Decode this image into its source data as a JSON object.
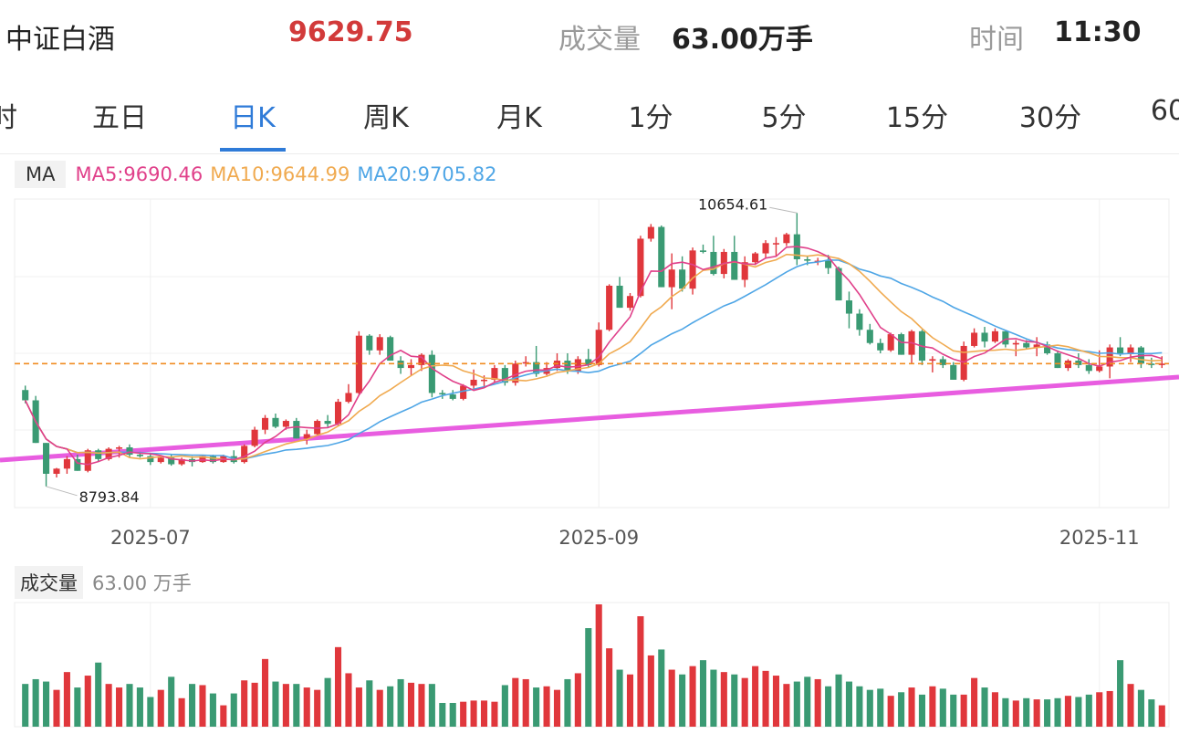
{
  "header": {
    "name": "中证白酒",
    "price": "9629.75",
    "volume_label": "成交量",
    "volume_value": "63.00万手",
    "time_label": "时间",
    "time_value": "11:30"
  },
  "tabs": [
    {
      "label": "时",
      "active": false
    },
    {
      "label": "五日",
      "active": false
    },
    {
      "label": "日K",
      "active": true
    },
    {
      "label": "周K",
      "active": false
    },
    {
      "label": "月K",
      "active": false
    },
    {
      "label": "1分",
      "active": false
    },
    {
      "label": "5分",
      "active": false
    },
    {
      "label": "15分",
      "active": false
    },
    {
      "label": "30分",
      "active": false
    },
    {
      "label": "60",
      "active": false
    }
  ],
  "ma": {
    "tag": "MA",
    "ma5": "MA5:9690.46",
    "ma10": "MA10:9644.99",
    "ma20": "MA20:9705.82",
    "colors": {
      "ma5": "#e0408a",
      "ma10": "#f0aa50",
      "ma20": "#4fa6e6"
    }
  },
  "volume_panel": {
    "tag": "成交量",
    "value": "63.00 万手"
  },
  "colors": {
    "up": "#e0373c",
    "down": "#3a9a73",
    "trendline": "#e85de0",
    "ref_line": "#f08c20"
  },
  "chart_data": {
    "type": "candlestick",
    "x_ticks": [
      "2025-07",
      "2025-09",
      "2025-11"
    ],
    "max_label": "10654.61",
    "min_label": "8793.84",
    "ylim": [
      8650,
      10750
    ],
    "reference_price": 9629.75,
    "candles": [
      [
        9450,
        9480,
        9360,
        9380
      ],
      [
        9380,
        9410,
        9090,
        9090
      ],
      [
        9090,
        9090,
        8794,
        8880
      ],
      [
        8880,
        8920,
        8855,
        8915
      ],
      [
        8915,
        9000,
        8880,
        8980
      ],
      [
        8980,
        9010,
        8900,
        8900
      ],
      [
        8900,
        9050,
        8890,
        9040
      ],
      [
        9040,
        9050,
        8960,
        8980
      ],
      [
        8980,
        9060,
        8970,
        9050
      ],
      [
        9050,
        9070,
        8990,
        9060
      ],
      [
        9060,
        9080,
        8990,
        9010
      ],
      [
        9010,
        9030,
        8990,
        9000
      ],
      [
        9000,
        9020,
        8940,
        8960
      ],
      [
        8960,
        9000,
        8950,
        8990
      ],
      [
        8990,
        9010,
        8935,
        8945
      ],
      [
        8945,
        8990,
        8935,
        8980
      ],
      [
        8980,
        9000,
        8930,
        8960
      ],
      [
        8960,
        9010,
        8955,
        9000
      ],
      [
        9000,
        9010,
        8950,
        8960
      ],
      [
        8960,
        9010,
        8955,
        9000
      ],
      [
        9000,
        9040,
        8950,
        8960
      ],
      [
        8960,
        9080,
        8950,
        9070
      ],
      [
        9070,
        9200,
        9060,
        9180
      ],
      [
        9180,
        9280,
        9150,
        9260
      ],
      [
        9260,
        9290,
        9190,
        9200
      ],
      [
        9200,
        9250,
        9180,
        9240
      ],
      [
        9240,
        9260,
        9120,
        9120
      ],
      [
        9120,
        9180,
        9080,
        9150
      ],
      [
        9150,
        9250,
        9140,
        9240
      ],
      [
        9240,
        9280,
        9200,
        9220
      ],
      [
        9220,
        9390,
        9210,
        9370
      ],
      [
        9370,
        9490,
        9360,
        9430
      ],
      [
        9430,
        9850,
        9420,
        9820
      ],
      [
        9820,
        9830,
        9690,
        9720
      ],
      [
        9720,
        9830,
        9690,
        9810
      ],
      [
        9810,
        9820,
        9650,
        9650
      ],
      [
        9650,
        9680,
        9560,
        9600
      ],
      [
        9600,
        9660,
        9550,
        9620
      ],
      [
        9620,
        9700,
        9580,
        9690
      ],
      [
        9690,
        9720,
        9400,
        9430
      ],
      [
        9430,
        9450,
        9390,
        9420
      ],
      [
        9420,
        9450,
        9380,
        9390
      ],
      [
        9390,
        9490,
        9380,
        9480
      ],
      [
        9480,
        9590,
        9460,
        9520
      ],
      [
        9520,
        9550,
        9470,
        9520
      ],
      [
        9520,
        9620,
        9500,
        9600
      ],
      [
        9600,
        9620,
        9480,
        9500
      ],
      [
        9500,
        9650,
        9480,
        9630
      ],
      [
        9630,
        9680,
        9610,
        9640
      ],
      [
        9640,
        9750,
        9540,
        9560
      ],
      [
        9560,
        9640,
        9550,
        9600
      ],
      [
        9600,
        9700,
        9580,
        9650
      ],
      [
        9650,
        9700,
        9560,
        9580
      ],
      [
        9580,
        9680,
        9560,
        9660
      ],
      [
        9660,
        9730,
        9600,
        9620
      ],
      [
        9620,
        9910,
        9610,
        9860
      ],
      [
        9860,
        10170,
        9850,
        10160
      ],
      [
        10160,
        10220,
        10010,
        10010
      ],
      [
        10010,
        10110,
        9990,
        10090
      ],
      [
        10090,
        10500,
        10080,
        10480
      ],
      [
        10480,
        10580,
        10460,
        10560
      ],
      [
        10560,
        10570,
        10150,
        10150
      ],
      [
        10150,
        10380,
        10000,
        10270
      ],
      [
        10270,
        10360,
        10120,
        10140
      ],
      [
        10140,
        10420,
        10100,
        10400
      ],
      [
        10400,
        10440,
        10380,
        10390
      ],
      [
        10390,
        10500,
        10230,
        10240
      ],
      [
        10240,
        10410,
        10210,
        10390
      ],
      [
        10390,
        10500,
        10200,
        10200
      ],
      [
        10200,
        10360,
        10150,
        10320
      ],
      [
        10320,
        10390,
        10300,
        10380
      ],
      [
        10380,
        10470,
        10350,
        10450
      ],
      [
        10450,
        10490,
        10360,
        10450
      ],
      [
        10450,
        10520,
        10430,
        10510
      ],
      [
        10510,
        10655,
        10300,
        10340
      ],
      [
        10340,
        10360,
        10300,
        10330
      ],
      [
        10330,
        10350,
        10300,
        10330
      ],
      [
        10330,
        10370,
        10240,
        10280
      ],
      [
        10280,
        10290,
        10060,
        10060
      ],
      [
        10060,
        10120,
        9870,
        9970
      ],
      [
        9970,
        10000,
        9820,
        9860
      ],
      [
        9860,
        9900,
        9760,
        9770
      ],
      [
        9770,
        9800,
        9700,
        9720
      ],
      [
        9720,
        9840,
        9710,
        9830
      ],
      [
        9830,
        9840,
        9690,
        9690
      ],
      [
        9690,
        9860,
        9630,
        9850
      ],
      [
        9850,
        9860,
        9620,
        9650
      ],
      [
        9650,
        9680,
        9570,
        9660
      ],
      [
        9660,
        9680,
        9600,
        9620
      ],
      [
        9620,
        9640,
        9520,
        9520
      ],
      [
        9520,
        9780,
        9510,
        9750
      ],
      [
        9750,
        9870,
        9740,
        9840
      ],
      [
        9840,
        9880,
        9740,
        9780
      ],
      [
        9780,
        9870,
        9770,
        9850
      ],
      [
        9850,
        9850,
        9740,
        9760
      ],
      [
        9760,
        9790,
        9680,
        9770
      ],
      [
        9770,
        9790,
        9730,
        9740
      ],
      [
        9740,
        9810,
        9680,
        9760
      ],
      [
        9760,
        9780,
        9690,
        9700
      ],
      [
        9700,
        9720,
        9600,
        9600
      ],
      [
        9600,
        9660,
        9580,
        9650
      ],
      [
        9650,
        9700,
        9600,
        9620
      ],
      [
        9620,
        9660,
        9560,
        9580
      ],
      [
        9580,
        9720,
        9570,
        9610
      ],
      [
        9610,
        9760,
        9530,
        9740
      ],
      [
        9740,
        9810,
        9680,
        9700
      ],
      [
        9700,
        9760,
        9640,
        9740
      ],
      [
        9740,
        9750,
        9600,
        9630
      ],
      [
        9630,
        9670,
        9600,
        9620
      ],
      [
        9620,
        9680,
        9600,
        9630
      ]
    ],
    "volumes": [
      3.6,
      4.0,
      3.8,
      3.1,
      4.6,
      3.3,
      4.3,
      5.4,
      3.6,
      3.3,
      3.6,
      3.3,
      2.5,
      3.1,
      4.2,
      2.4,
      3.6,
      3.5,
      2.8,
      1.8,
      2.8,
      3.9,
      3.7,
      5.7,
      3.8,
      3.6,
      3.6,
      3.3,
      3.1,
      4.1,
      6.7,
      4.5,
      3.3,
      3.9,
      3.1,
      3.4,
      4.0,
      3.7,
      3.6,
      3.6,
      2.0,
      2.0,
      2.1,
      2.2,
      2.2,
      2.1,
      3.5,
      4.1,
      4.0,
      3.3,
      3.4,
      3.1,
      4.0,
      4.5,
      8.3,
      10.3,
      6.6,
      4.8,
      4.4,
      9.3,
      6.0,
      6.5,
      4.8,
      4.4,
      5.1,
      5.6,
      4.8,
      4.6,
      4.4,
      4.1,
      5.1,
      4.7,
      4.3,
      3.6,
      3.8,
      4.2,
      4.0,
      3.4,
      4.4,
      3.8,
      3.4,
      3.1,
      3.2,
      2.6,
      2.9,
      3.3,
      2.7,
      3.4,
      3.2,
      2.7,
      2.7,
      4.1,
      3.3,
      2.9,
      2.4,
      2.2,
      2.4,
      2.3,
      2.3,
      2.4,
      2.6,
      2.5,
      2.7,
      2.9,
      3.0,
      5.6,
      3.6,
      3.1,
      2.3,
      1.8
    ]
  }
}
